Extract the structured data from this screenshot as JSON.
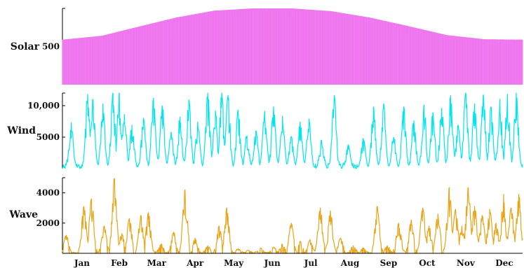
{
  "chart_data": {
    "type": "multi-panel",
    "x_axis": {
      "type": "date",
      "range": [
        "2023-01-01",
        "2023-12-31"
      ],
      "tick_labels": [
        "Jan",
        "Feb",
        "Mar",
        "Apr",
        "May",
        "Jun",
        "Jul",
        "Aug",
        "Sep",
        "Oct",
        "Nov",
        "Dec"
      ]
    },
    "panels": [
      {
        "id": "solar",
        "type": "area",
        "ylabel": "Solar",
        "ylim": [
          0,
          1000
        ],
        "yticks": [
          500
        ],
        "ytick_labels": [
          "500"
        ],
        "color": "#ee82ee",
        "fill_color": "#f06ef0",
        "envelope": {
          "x": [
            "2023-01-01",
            "2023-02-01",
            "2023-03-01",
            "2023-04-01",
            "2023-05-01",
            "2023-06-01",
            "2023-06-21",
            "2023-07-01",
            "2023-08-01",
            "2023-09-01",
            "2023-10-01",
            "2023-11-01",
            "2023-12-01",
            "2023-12-31"
          ],
          "y": [
            590,
            640,
            755,
            880,
            970,
            1000,
            1005,
            1000,
            965,
            880,
            770,
            650,
            595,
            590
          ]
        }
      },
      {
        "id": "wind",
        "type": "line",
        "ylabel": "Wind",
        "ylim": [
          0,
          12000
        ],
        "yticks": [
          5000,
          10000
        ],
        "ytick_labels": [
          "5000",
          "10,000"
        ],
        "color": "#00e5ee",
        "peaks": {
          "x": [
            "2023-01-08",
            "2023-01-21",
            "2023-01-25",
            "2023-02-02",
            "2023-02-10",
            "2023-02-15",
            "2023-02-19",
            "2023-02-25",
            "2023-03-06",
            "2023-03-14",
            "2023-03-21",
            "2023-03-28",
            "2023-04-04",
            "2023-04-11",
            "2023-04-18",
            "2023-04-26",
            "2023-05-02",
            "2023-05-07",
            "2023-05-12",
            "2023-05-20",
            "2023-05-27",
            "2023-06-03",
            "2023-06-10",
            "2023-06-17",
            "2023-06-24",
            "2023-07-01",
            "2023-07-08",
            "2023-07-15",
            "2023-07-25",
            "2023-08-04",
            "2023-08-15",
            "2023-08-27",
            "2023-09-04",
            "2023-09-12",
            "2023-09-20",
            "2023-09-28",
            "2023-10-06",
            "2023-10-14",
            "2023-10-21",
            "2023-10-28",
            "2023-11-04",
            "2023-11-10",
            "2023-11-16",
            "2023-11-23",
            "2023-11-30",
            "2023-12-06",
            "2023-12-13",
            "2023-12-19",
            "2023-12-26"
          ],
          "y": [
            7300,
            11800,
            11000,
            10300,
            12100,
            12000,
            8600,
            6900,
            8000,
            11200,
            9900,
            5800,
            8200,
            10900,
            7400,
            12000,
            9200,
            12100,
            11600,
            9300,
            5200,
            6000,
            9100,
            9800,
            8300,
            5100,
            7400,
            7900,
            4500,
            11600,
            3800,
            4800,
            9800,
            10300,
            4900,
            9800,
            7600,
            10100,
            8900,
            9600,
            11600,
            6900,
            12000,
            10300,
            11700,
            9800,
            11000,
            11800,
            12000
          ]
        }
      },
      {
        "id": "wave",
        "type": "line",
        "ylabel": "Wave",
        "ylim": [
          0,
          5000
        ],
        "yticks": [
          2000,
          4000
        ],
        "ytick_labels": [
          "2000",
          "4000"
        ],
        "color": "#e8a317",
        "peaks": {
          "x": [
            "2023-01-04",
            "2023-01-18",
            "2023-01-24",
            "2023-02-03",
            "2023-02-11",
            "2023-02-17",
            "2023-02-23",
            "2023-03-04",
            "2023-03-10",
            "2023-03-20",
            "2023-03-30",
            "2023-04-08",
            "2023-04-16",
            "2023-04-26",
            "2023-05-05",
            "2023-05-11",
            "2023-05-20",
            "2023-05-28",
            "2023-06-07",
            "2023-06-17",
            "2023-06-24",
            "2023-07-01",
            "2023-07-08",
            "2023-07-16",
            "2023-07-24",
            "2023-08-01",
            "2023-08-09",
            "2023-08-19",
            "2023-08-27",
            "2023-09-07",
            "2023-09-15",
            "2023-09-24",
            "2023-10-04",
            "2023-10-13",
            "2023-10-18",
            "2023-10-25",
            "2023-11-03",
            "2023-11-08",
            "2023-11-13",
            "2023-11-18",
            "2023-11-23",
            "2023-11-29",
            "2023-12-05",
            "2023-12-10",
            "2023-12-16",
            "2023-12-22",
            "2023-12-28"
          ],
          "y": [
            1200,
            3100,
            3600,
            1800,
            4950,
            1300,
            2300,
            2500,
            2700,
            600,
            1400,
            4200,
            1000,
            500,
            1800,
            3000,
            300,
            200,
            350,
            400,
            600,
            2000,
            800,
            900,
            3000,
            2800,
            1000,
            500,
            350,
            3100,
            500,
            2000,
            2200,
            3000,
            1800,
            2600,
            4350,
            2900,
            1800,
            4350,
            3100,
            2500,
            2900,
            2000,
            3900,
            3000,
            3900
          ]
        }
      }
    ]
  }
}
